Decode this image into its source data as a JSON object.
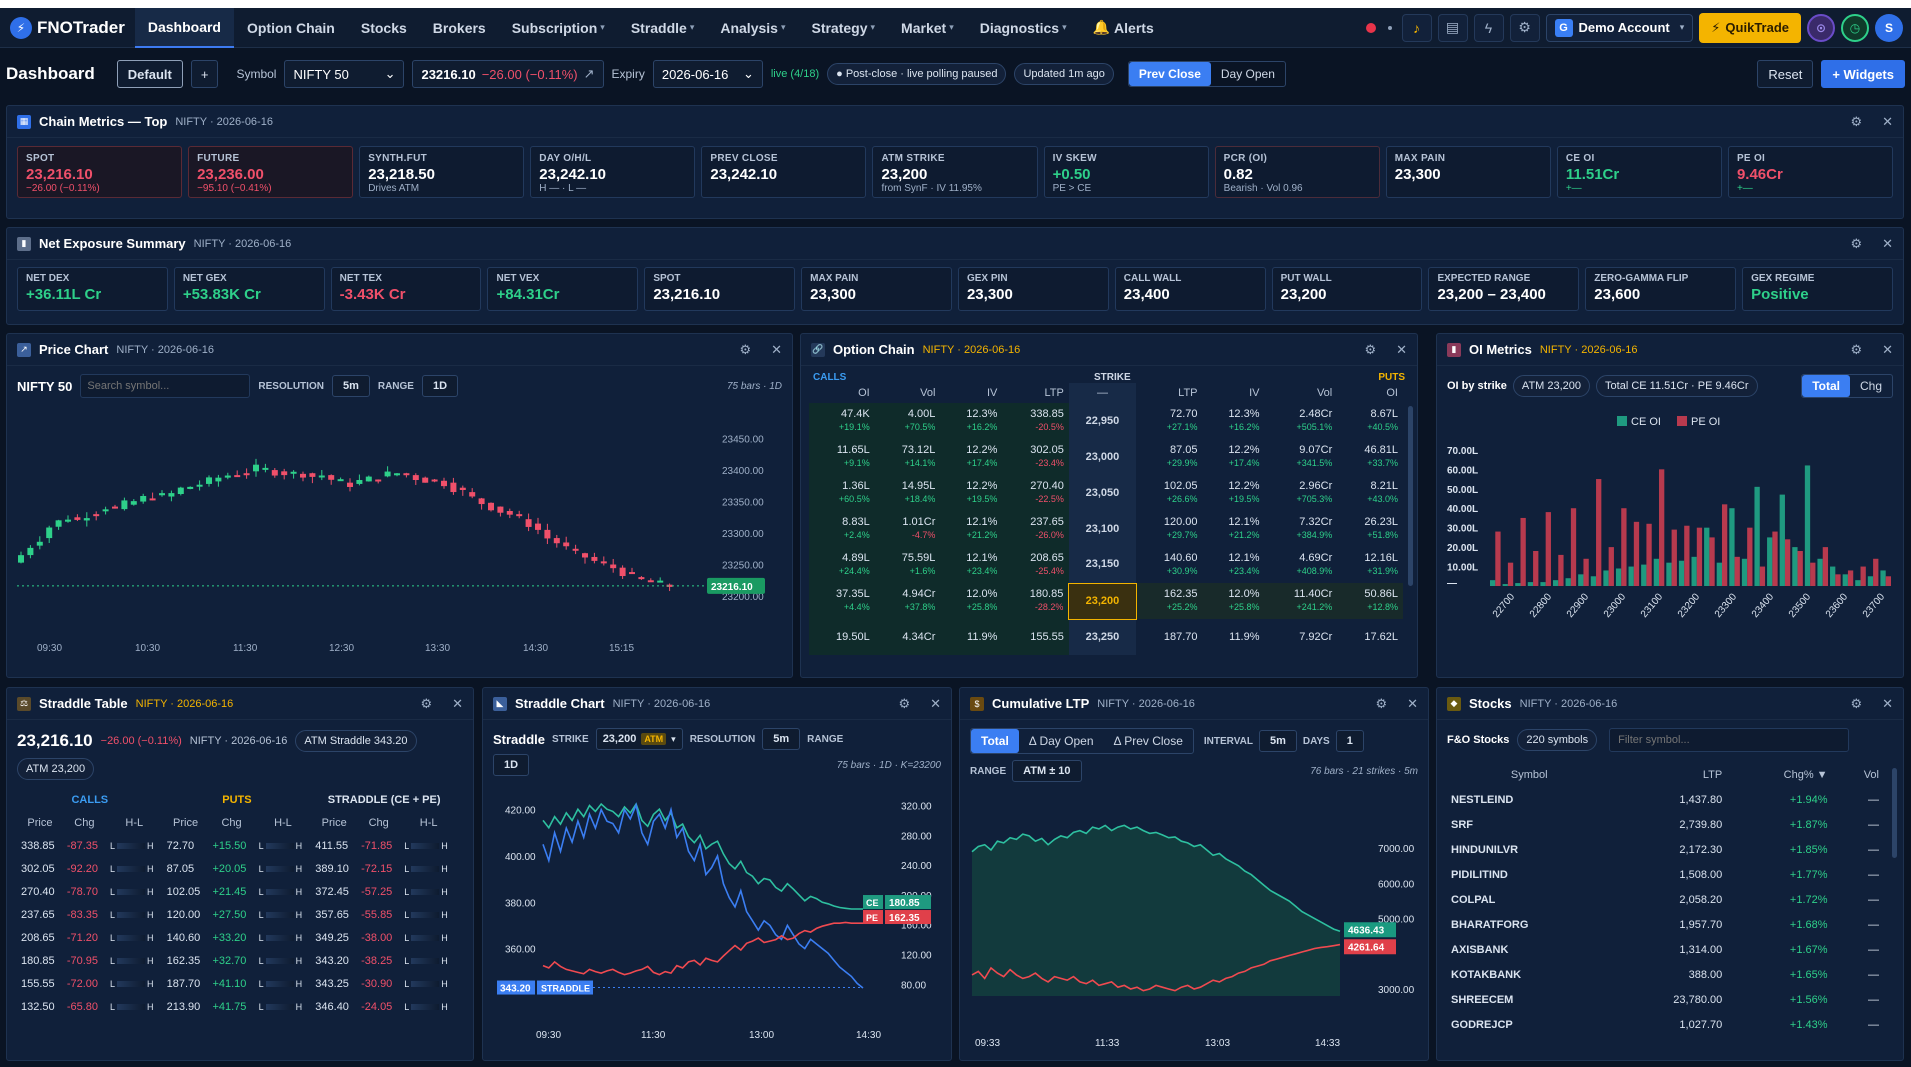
{
  "nav": {
    "brand": "FNOTrader",
    "items": [
      {
        "label": "Dashboard",
        "caret": false
      },
      {
        "label": "Option Chain",
        "caret": false
      },
      {
        "label": "Stocks",
        "caret": false
      },
      {
        "label": "Brokers",
        "caret": false
      },
      {
        "label": "Subscription",
        "caret": true
      },
      {
        "label": "Straddle",
        "caret": true
      },
      {
        "label": "Analysis",
        "caret": true
      },
      {
        "label": "Strategy",
        "caret": true
      },
      {
        "label": "Market",
        "caret": true
      },
      {
        "label": "Diagnostics",
        "caret": true
      }
    ],
    "alerts": "Alerts",
    "demo": "Demo Account",
    "quik": "QuikTrade",
    "avatar": "S"
  },
  "toolbar": {
    "title": "Dashboard",
    "layout": "Default",
    "add": "+",
    "symbol_label": "Symbol",
    "symbol": "NIFTY 50",
    "price": "23216.10",
    "change": "−26.00 (−0.11%)",
    "expiry_label": "Expiry",
    "expiry": "2026-06-16",
    "live": "live (4/18)",
    "status": "● Post-close · live polling paused",
    "updated": "Updated 1m ago",
    "prev_close": "Prev Close",
    "day_open": "Day Open",
    "reset": "Reset",
    "widgets": "+ Widgets"
  },
  "chain_metrics": {
    "title": "Chain Metrics — Top",
    "sub": "NIFTY · 2026-06-16",
    "cards": [
      {
        "k": "SPOT",
        "v": "23,216.10",
        "u": "−26.00 (−0.11%)",
        "vc": "r",
        "uc": "r",
        "bc": "red"
      },
      {
        "k": "FUTURE",
        "v": "23,236.00",
        "u": "−95.10 (−0.41%)",
        "vc": "r",
        "uc": "r",
        "bc": "red"
      },
      {
        "k": "SYNTH.FUT",
        "v": "23,218.50",
        "u": "Drives ATM",
        "vc": "",
        "uc": "",
        "bc": ""
      },
      {
        "k": "DAY O/H/L",
        "v": "23,242.10",
        "u": "H — · L —",
        "vc": "",
        "uc": "",
        "bc": ""
      },
      {
        "k": "PREV CLOSE",
        "v": "23,242.10",
        "u": "",
        "vc": "",
        "uc": "",
        "bc": ""
      },
      {
        "k": "ATM STRIKE",
        "v": "23,200",
        "u": "from SynF · IV 11.95%",
        "vc": "",
        "uc": "",
        "bc": ""
      },
      {
        "k": "IV SKEW",
        "v": "+0.50",
        "u": "PE > CE",
        "vc": "g",
        "uc": "",
        "bc": ""
      },
      {
        "k": "PCR (OI)",
        "v": "0.82",
        "u": "Bearish · Vol 0.96",
        "vc": "",
        "uc": "",
        "bc": "rd2"
      },
      {
        "k": "MAX PAIN",
        "v": "23,300",
        "u": "",
        "vc": "",
        "uc": "",
        "bc": ""
      },
      {
        "k": "CE OI",
        "v": "11.51Cr",
        "u": "+—",
        "vc": "g",
        "uc": "g",
        "bc": ""
      },
      {
        "k": "PE OI",
        "v": "9.46Cr",
        "u": "+—",
        "vc": "r",
        "uc": "g",
        "bc": ""
      }
    ]
  },
  "net_exposure": {
    "title": "Net Exposure Summary",
    "sub": "NIFTY · 2026-06-16",
    "cards": [
      {
        "k": "NET DEX",
        "v": "+36.11L Cr",
        "c": "g"
      },
      {
        "k": "NET GEX",
        "v": "+53.83K Cr",
        "c": "g"
      },
      {
        "k": "NET TEX",
        "v": "-3.43K Cr",
        "c": "r"
      },
      {
        "k": "NET VEX",
        "v": "+84.31Cr",
        "c": "g"
      },
      {
        "k": "SPOT",
        "v": "23,216.10",
        "c": ""
      },
      {
        "k": "MAX PAIN",
        "v": "23,300",
        "c": ""
      },
      {
        "k": "GEX PIN",
        "v": "23,300",
        "c": ""
      },
      {
        "k": "CALL WALL",
        "v": "23,400",
        "c": ""
      },
      {
        "k": "PUT WALL",
        "v": "23,200",
        "c": ""
      },
      {
        "k": "EXPECTED RANGE",
        "v": "23,200 – 23,400",
        "c": ""
      },
      {
        "k": "ZERO-GAMMA FLIP",
        "v": "23,600",
        "c": ""
      },
      {
        "k": "GEX REGIME",
        "v": "Positive",
        "c": "g"
      }
    ]
  },
  "price_chart": {
    "title": "Price Chart",
    "sub": "NIFTY · 2026-06-16",
    "symbol": "NIFTY 50",
    "search_ph": "Search symbol...",
    "res_label": "RESOLUTION",
    "res": "5m",
    "range_label": "RANGE",
    "range": "1D",
    "bars": "75 bars · 1D",
    "last": "23216.10",
    "yticks": [
      "23450.00",
      "23400.00",
      "23350.00",
      "23300.00",
      "23250.00",
      "23200.00"
    ],
    "xticks": [
      "09:30",
      "10:30",
      "11:30",
      "12:30",
      "13:30",
      "14:30",
      "15:15"
    ]
  },
  "option_chain": {
    "title": "Option Chain",
    "sub": "NIFTY · 2026-06-16",
    "calls": "CALLS",
    "strike": "STRIKE",
    "puts": "PUTS",
    "cols": [
      "OI",
      "Vol",
      "IV",
      "LTP",
      "—",
      "LTP",
      "IV",
      "Vol",
      "OI"
    ],
    "rows": [
      {
        "s": "22,950",
        "c": [
          "47.4K",
          "4.00L",
          "12.3%",
          "338.85"
        ],
        "cs": [
          "+19.1%",
          "+70.5%",
          "+16.2%",
          "-20.5%"
        ],
        "p": [
          "72.70",
          "12.3%",
          "2.48Cr",
          "8.67L"
        ],
        "ps": [
          "+27.1%",
          "+16.2%",
          "+505.1%",
          "+40.5%"
        ]
      },
      {
        "s": "23,000",
        "c": [
          "11.65L",
          "73.12L",
          "12.2%",
          "302.05"
        ],
        "cs": [
          "+9.1%",
          "+14.1%",
          "+17.4%",
          "-23.4%"
        ],
        "p": [
          "87.05",
          "12.2%",
          "9.07Cr",
          "46.81L"
        ],
        "ps": [
          "+29.9%",
          "+17.4%",
          "+341.5%",
          "+33.7%"
        ]
      },
      {
        "s": "23,050",
        "c": [
          "1.36L",
          "14.95L",
          "12.2%",
          "270.40"
        ],
        "cs": [
          "+60.5%",
          "+18.4%",
          "+19.5%",
          "-22.5%"
        ],
        "p": [
          "102.05",
          "12.2%",
          "2.96Cr",
          "8.21L"
        ],
        "ps": [
          "+26.6%",
          "+19.5%",
          "+705.3%",
          "+43.0%"
        ]
      },
      {
        "s": "23,100",
        "c": [
          "8.83L",
          "1.01Cr",
          "12.1%",
          "237.65"
        ],
        "cs": [
          "+2.4%",
          "-4.7%",
          "+21.2%",
          "-26.0%"
        ],
        "p": [
          "120.00",
          "12.1%",
          "7.32Cr",
          "26.23L"
        ],
        "ps": [
          "+29.7%",
          "+21.2%",
          "+384.9%",
          "+51.8%"
        ]
      },
      {
        "s": "23,150",
        "c": [
          "4.89L",
          "75.59L",
          "12.1%",
          "208.65"
        ],
        "cs": [
          "+24.4%",
          "+1.6%",
          "+23.4%",
          "-25.4%"
        ],
        "p": [
          "140.60",
          "12.1%",
          "4.69Cr",
          "12.16L"
        ],
        "ps": [
          "+30.9%",
          "+23.4%",
          "+408.9%",
          "+31.9%"
        ]
      },
      {
        "s": "23,200",
        "c": [
          "37.35L",
          "4.94Cr",
          "12.0%",
          "180.85"
        ],
        "cs": [
          "+4.4%",
          "+37.8%",
          "+25.8%",
          "-28.2%"
        ],
        "p": [
          "162.35",
          "12.0%",
          "11.40Cr",
          "50.86L"
        ],
        "ps": [
          "+25.2%",
          "+25.8%",
          "+241.2%",
          "+12.8%"
        ],
        "atm": true
      },
      {
        "s": "23,250",
        "c": [
          "19.50L",
          "4.34Cr",
          "11.9%",
          "155.55"
        ],
        "cs": [
          "",
          "",
          "",
          ""
        ],
        "p": [
          "187.70",
          "11.9%",
          "7.92Cr",
          "17.62L"
        ],
        "ps": [
          "",
          "",
          "",
          ""
        ]
      }
    ]
  },
  "oi_metrics": {
    "title": "OI Metrics",
    "sub": "NIFTY · 2026-06-16",
    "label": "OI by strike",
    "atm": "ATM 23,200",
    "total": "Total  CE 11.51Cr · PE 9.46Cr",
    "tab1": "Total",
    "tab2": "Chg",
    "legend": [
      "CE OI",
      "PE OI"
    ],
    "yticks": [
      "70.00L",
      "60.00L",
      "50.00L",
      "40.00L",
      "30.00L",
      "20.00L",
      "10.00L",
      "—"
    ],
    "xticks": [
      "22700",
      "22800",
      "22900",
      "23000",
      "23100",
      "23200",
      "23300",
      "23400",
      "23500",
      "23600",
      "23700"
    ]
  },
  "straddle_table": {
    "title": "Straddle Table",
    "sub": "NIFTY · 2026-06-16",
    "price": "23,216.10",
    "chg": "−26.00 (−0.11%)",
    "sym": "NIFTY · 2026-06-16",
    "atm_straddle": "ATM Straddle  343.20",
    "atm": "ATM  23,200",
    "calls": "CALLS",
    "puts": "PUTS",
    "straddle": "STRADDLE (CE + PE)",
    "cols": [
      "Price",
      "Chg",
      "H-L",
      "Price",
      "Chg",
      "H-L",
      "Price",
      "Chg",
      "H-L"
    ],
    "rows": [
      [
        "338.85",
        "-87.35",
        "72.70",
        "+15.50",
        "411.55",
        "-71.85"
      ],
      [
        "302.05",
        "-92.20",
        "87.05",
        "+20.05",
        "389.10",
        "-72.15"
      ],
      [
        "270.40",
        "-78.70",
        "102.05",
        "+21.45",
        "372.45",
        "-57.25"
      ],
      [
        "237.65",
        "-83.35",
        "120.00",
        "+27.50",
        "357.65",
        "-55.85"
      ],
      [
        "208.65",
        "-71.20",
        "140.60",
        "+33.20",
        "349.25",
        "-38.00"
      ],
      [
        "180.85",
        "-70.95",
        "162.35",
        "+32.70",
        "343.20",
        "-38.25"
      ],
      [
        "155.55",
        "-72.00",
        "187.70",
        "+41.10",
        "343.25",
        "-30.90"
      ],
      [
        "132.50",
        "-65.80",
        "213.90",
        "+41.75",
        "346.40",
        "-24.05"
      ]
    ]
  },
  "straddle_chart": {
    "title": "Straddle Chart",
    "sub": "NIFTY · 2026-06-16",
    "label": "Straddle",
    "strike_label": "STRIKE",
    "strike": "23,200",
    "atm": "ATM",
    "res_label": "RESOLUTION",
    "res": "5m",
    "range_label": "RANGE",
    "range": "1D",
    "bars": "75 bars · 1D · K=23200",
    "ce": "180.85",
    "pe": "162.35",
    "straddle_val": "343.20",
    "straddle_tag": "STRADDLE",
    "lticks": [
      "420.00",
      "400.00",
      "380.00",
      "360.00"
    ],
    "rticks": [
      "320.00",
      "280.00",
      "240.00",
      "200.00",
      "160.00",
      "120.00",
      "80.00"
    ],
    "xticks": [
      "09:30",
      "11:30",
      "13:00",
      "14:30"
    ]
  },
  "cum_ltp": {
    "title": "Cumulative LTP",
    "sub": "NIFTY · 2026-06-16",
    "tabs": [
      "Total",
      "Δ Day Open",
      "Δ Prev Close"
    ],
    "interval_label": "INTERVAL",
    "interval": "5m",
    "days_label": "DAYS",
    "days": "1",
    "range_label": "RANGE",
    "range": "ATM ± 10",
    "bars": "76 bars · 21 strikes · 5m",
    "v1": "4636.43",
    "v2": "4261.64",
    "yticks": [
      "7000.00",
      "6000.00",
      "5000.00",
      "3000.00"
    ],
    "xticks": [
      "09:33",
      "11:33",
      "13:03",
      "14:33"
    ]
  },
  "stocks": {
    "title": "Stocks",
    "sub": "NIFTY · 2026-06-16",
    "label": "F&O Stocks",
    "count": "220 symbols",
    "filter_ph": "Filter symbol...",
    "cols": [
      "Symbol",
      "LTP",
      "Chg% ▼",
      "Vol"
    ],
    "rows": [
      [
        "NESTLEIND",
        "1,437.80",
        "+1.94%",
        "—"
      ],
      [
        "SRF",
        "2,739.80",
        "+1.87%",
        "—"
      ],
      [
        "HINDUNILVR",
        "2,172.30",
        "+1.85%",
        "—"
      ],
      [
        "PIDILITIND",
        "1,508.00",
        "+1.77%",
        "—"
      ],
      [
        "COLPAL",
        "2,058.20",
        "+1.72%",
        "—"
      ],
      [
        "BHARATFORG",
        "1,957.70",
        "+1.68%",
        "—"
      ],
      [
        "AXISBANK",
        "1,314.00",
        "+1.67%",
        "—"
      ],
      [
        "KOTAKBANK",
        "388.00",
        "+1.65%",
        "—"
      ],
      [
        "SHREECEM",
        "23,780.00",
        "+1.56%",
        "—"
      ],
      [
        "GODREJCP",
        "1,027.70",
        "+1.43%",
        "—"
      ]
    ]
  },
  "colors": {
    "green": "#2ed08a",
    "red": "#f0506a",
    "blue": "#3b7ef2",
    "accent": "#f4b400"
  }
}
